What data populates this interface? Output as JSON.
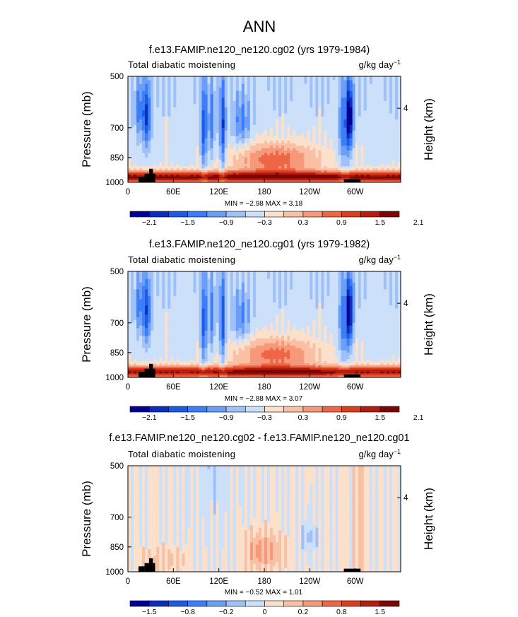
{
  "figure": {
    "title": "ANN"
  },
  "colors": {
    "cbar": [
      "#000096",
      "#0a2ebe",
      "#1e5ae6",
      "#3c7ef8",
      "#6a9ef8",
      "#9fc1f8",
      "#cce0fa",
      "#fbe0cc",
      "#f9c0a4",
      "#f6987a",
      "#ef6646",
      "#db3e1a",
      "#b41e10",
      "#7d0707"
    ],
    "terrain": "#000000",
    "frame": "#000000"
  },
  "chart_data": [
    {
      "type": "heatmap",
      "title": "f.e13.FAMIP.ne120_ne120.cg02 (yrs 1979-1984)",
      "left_label": "Total diabatic moistening",
      "right_label": "g/kg day",
      "right_label_sup": "−1",
      "ylabel": "Pressure (mb)",
      "ylabel_right": "Height (km)",
      "y_ticks": [
        "500",
        "700",
        "850",
        "1000"
      ],
      "y_right_ticks": [
        "4"
      ],
      "x_ticks": [
        "0",
        "60E",
        "120E",
        "180",
        "120W",
        "60W"
      ],
      "xlim": [
        0,
        360
      ],
      "ylim": [
        1000,
        500
      ],
      "stats": "MIN =   −2.98   MAX =    3.18",
      "colorbar_labels": [
        "−2.1",
        "−1.5",
        "−0.9",
        "−0.3",
        "0.3",
        "0.9",
        "1.5",
        "2.1"
      ]
    },
    {
      "type": "heatmap",
      "title": "f.e13.FAMIP.ne120_ne120.cg01 (yrs 1979-1982)",
      "left_label": "Total diabatic moistening",
      "right_label": "g/kg day",
      "right_label_sup": "−1",
      "ylabel": "Pressure (mb)",
      "ylabel_right": "Height (km)",
      "y_ticks": [
        "500",
        "700",
        "850",
        "1000"
      ],
      "y_right_ticks": [
        "4"
      ],
      "x_ticks": [
        "0",
        "60E",
        "120E",
        "180",
        "120W",
        "60W"
      ],
      "xlim": [
        0,
        360
      ],
      "ylim": [
        1000,
        500
      ],
      "stats": "MIN =   −2.88   MAX =    3.07",
      "colorbar_labels": [
        "−2.1",
        "−1.5",
        "−0.9",
        "−0.3",
        "0.3",
        "0.9",
        "1.5",
        "2.1"
      ]
    },
    {
      "type": "heatmap",
      "title": "f.e13.FAMIP.ne120_ne120.cg02 - f.e13.FAMIP.ne120_ne120.cg01",
      "left_label": "Total diabatic moistening",
      "right_label": "g/kg day",
      "right_label_sup": "−1",
      "ylabel": "Pressure (mb)",
      "ylabel_right": "Height (km)",
      "y_ticks": [
        "500",
        "700",
        "850",
        "1000"
      ],
      "y_right_ticks": [
        "4"
      ],
      "x_ticks": [
        "0",
        "60E",
        "120E",
        "180",
        "120W",
        "60W"
      ],
      "xlim": [
        0,
        360
      ],
      "ylim": [
        1000,
        500
      ],
      "stats": "MIN =   −0.52   MAX =    1.01",
      "colorbar_labels": [
        "−1.5",
        "−0.8",
        "−0.2",
        "0",
        "0.2",
        "0.8",
        "1.5"
      ]
    }
  ]
}
